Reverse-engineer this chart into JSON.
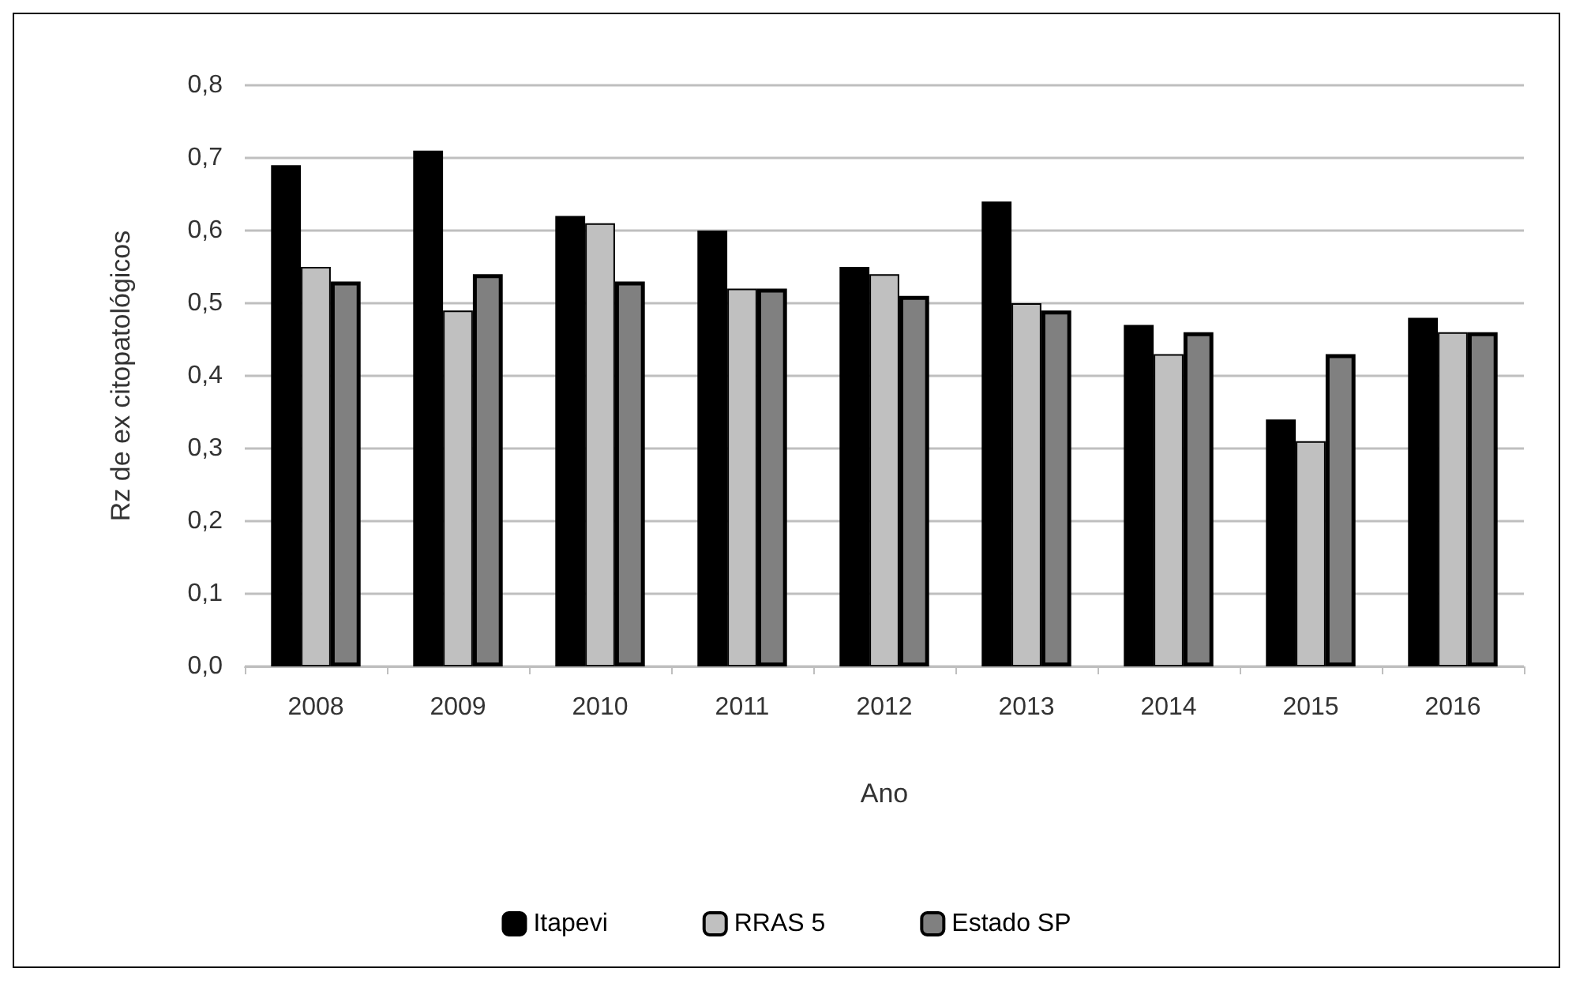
{
  "chart_data": {
    "type": "bar",
    "xlabel": "Ano",
    "ylabel": "Rz de ex citopatológicos",
    "categories": [
      "2008",
      "2009",
      "2010",
      "2011",
      "2012",
      "2013",
      "2014",
      "2015",
      "2016"
    ],
    "series": [
      {
        "name": "Itapevi",
        "color": "#000000",
        "values": [
          0.69,
          0.71,
          0.62,
          0.6,
          0.55,
          0.64,
          0.47,
          0.34,
          0.48
        ]
      },
      {
        "name": "RRAS 5",
        "color": "#c0c0c0",
        "values": [
          0.55,
          0.49,
          0.61,
          0.52,
          0.54,
          0.5,
          0.43,
          0.31,
          0.46
        ]
      },
      {
        "name": "Estado SP",
        "color": "#808080",
        "values": [
          0.53,
          0.54,
          0.53,
          0.52,
          0.51,
          0.49,
          0.46,
          0.43,
          0.46
        ]
      }
    ],
    "ylim": [
      0,
      0.8
    ],
    "yticks": [
      {
        "value": 0,
        "label": "0,0"
      },
      {
        "value": 0.1,
        "label": "0,1"
      },
      {
        "value": 0.2,
        "label": "0,2"
      },
      {
        "value": 0.3,
        "label": "0,3"
      },
      {
        "value": 0.4,
        "label": "0,4"
      },
      {
        "value": 0.5,
        "label": "0,5"
      },
      {
        "value": 0.6,
        "label": "0,6"
      },
      {
        "value": 0.7,
        "label": "0,7"
      },
      {
        "value": 0.8,
        "label": "0,8"
      }
    ],
    "grid": "y",
    "legend": "bottom"
  }
}
